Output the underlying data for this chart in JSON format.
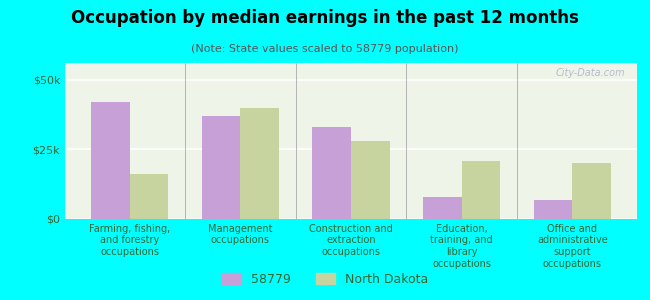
{
  "title": "Occupation by median earnings in the past 12 months",
  "subtitle": "(Note: State values scaled to 58779 population)",
  "categories": [
    "Farming, fishing,\nand forestry\noccupations",
    "Management\noccupations",
    "Construction and\nextraction\noccupations",
    "Education,\ntraining, and\nlibrary\noccupations",
    "Office and\nadministrative\nsupport\noccupations"
  ],
  "values_58779": [
    42000,
    37000,
    33000,
    8000,
    7000
  ],
  "values_nd": [
    16000,
    40000,
    28000,
    21000,
    20000
  ],
  "color_58779": "#c8a0d8",
  "color_nd": "#c8d4a0",
  "background_color": "#00ffff",
  "plot_bg_color": "#eef5e8",
  "yticks": [
    0,
    25000,
    50000
  ],
  "ytick_labels": [
    "$0",
    "$25k",
    "$50k"
  ],
  "ylim": [
    0,
    56000
  ],
  "bar_width": 0.35,
  "legend_label_58779": "58779",
  "legend_label_nd": "North Dakota",
  "watermark": "City-Data.com"
}
